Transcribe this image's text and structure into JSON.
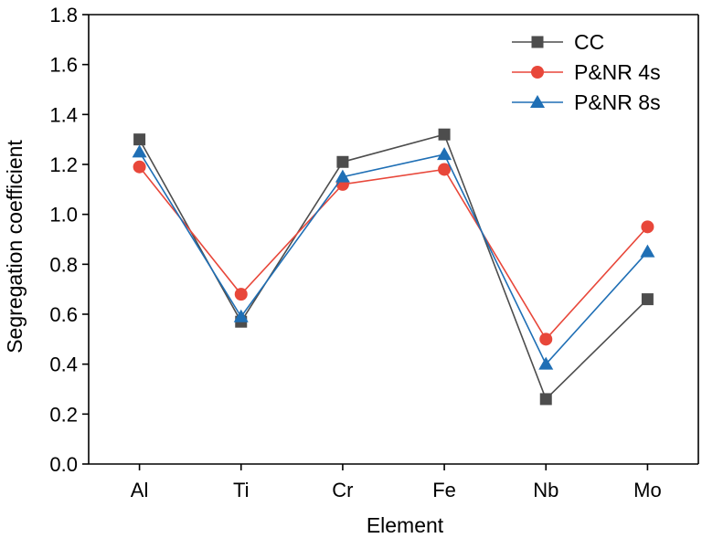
{
  "chart_data": {
    "type": "line",
    "title": "",
    "xlabel": "Element",
    "ylabel": "Segregation coefficient",
    "categories": [
      "Al",
      "Ti",
      "Cr",
      "Fe",
      "Nb",
      "Mo"
    ],
    "ylim": [
      0.0,
      1.8
    ],
    "yticks": [
      "0.0",
      "0.2",
      "0.4",
      "0.6",
      "0.8",
      "1.0",
      "1.2",
      "1.4",
      "1.6",
      "1.8"
    ],
    "grid": false,
    "legend_position": "top-right",
    "series": [
      {
        "name": "CC",
        "marker": "square",
        "color": "#4d4d4d",
        "values": [
          1.3,
          0.57,
          1.21,
          1.32,
          0.26,
          0.66
        ]
      },
      {
        "name": "P&NR 4s",
        "marker": "circle",
        "color": "#e8473a",
        "values": [
          1.19,
          0.68,
          1.12,
          1.18,
          0.5,
          0.95
        ]
      },
      {
        "name": "P&NR 8s",
        "marker": "triangle",
        "color": "#1f6fb5",
        "values": [
          1.25,
          0.59,
          1.15,
          1.24,
          0.4,
          0.85
        ]
      }
    ]
  }
}
